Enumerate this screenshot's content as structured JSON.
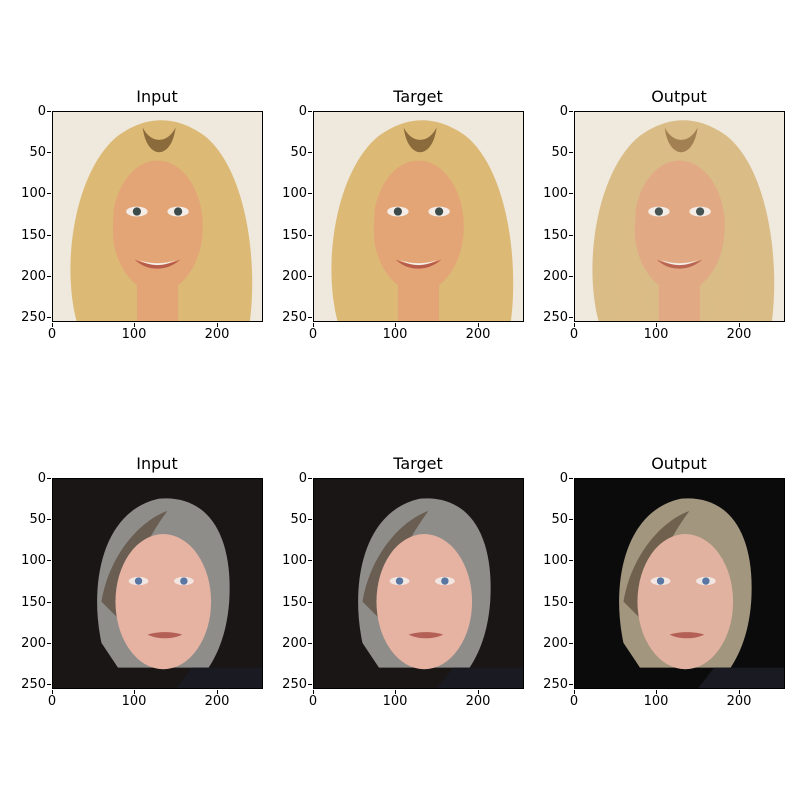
{
  "figure": {
    "rows": [
      {
        "theme": "blonde",
        "panels": [
          {
            "title": "Input",
            "variant": "input"
          },
          {
            "title": "Target",
            "variant": "target"
          },
          {
            "title": "Output",
            "variant": "output"
          }
        ]
      },
      {
        "theme": "gray",
        "panels": [
          {
            "title": "Input",
            "variant": "input"
          },
          {
            "title": "Target",
            "variant": "target"
          },
          {
            "title": "Output",
            "variant": "output"
          }
        ]
      }
    ],
    "axes": {
      "x_ticks": [
        "0",
        "100",
        "200"
      ],
      "y_ticks": [
        "0",
        "50",
        "100",
        "150",
        "200",
        "250"
      ]
    }
  }
}
